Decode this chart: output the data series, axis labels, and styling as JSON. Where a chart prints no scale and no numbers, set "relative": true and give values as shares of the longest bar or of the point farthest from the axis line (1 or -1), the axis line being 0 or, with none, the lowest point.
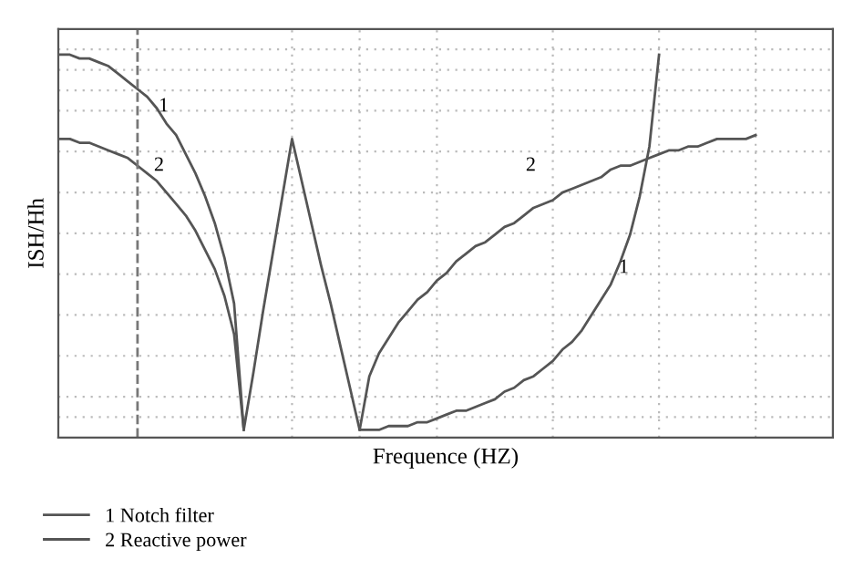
{
  "chart_data": {
    "type": "line",
    "relative": true,
    "xlabel": "Frequence (HZ)",
    "ylabel": "ISH/Hh",
    "categories": [
      null,
      null,
      null,
      null,
      null,
      null,
      null,
      null,
      null,
      null,
      null,
      null,
      null,
      null,
      null,
      null,
      null,
      null,
      null,
      null,
      null,
      null,
      null,
      null,
      null,
      null,
      null,
      null,
      null,
      null,
      null,
      null,
      null,
      null,
      null,
      null,
      null,
      null,
      null,
      null,
      null,
      null,
      null,
      null,
      null,
      null,
      null,
      null,
      null,
      null,
      null,
      null,
      null,
      null,
      null,
      null,
      null,
      null,
      null,
      null,
      null,
      null,
      null,
      null,
      null,
      null,
      null,
      null,
      null,
      null,
      null,
      null,
      null,
      null,
      null,
      null,
      null,
      null,
      null,
      null,
      null
    ],
    "series": [
      {
        "name": "1 Notch filter",
        "color": "#555555",
        "values": [
          1.0,
          1.0,
          0.99,
          0.99,
          0.98,
          0.97,
          0.95,
          0.93,
          0.91,
          0.89,
          0.86,
          0.82,
          0.79,
          0.74,
          0.69,
          0.63,
          0.56,
          0.47,
          0.35,
          0.02,
          0.17,
          0.33,
          0.48,
          0.63,
          0.78,
          0.67,
          0.56,
          0.45,
          0.35,
          0.24,
          0.13,
          0.02,
          0.02,
          0.02,
          0.03,
          0.03,
          0.03,
          0.04,
          0.04,
          0.05,
          0.06,
          0.07,
          0.07,
          0.08,
          0.09,
          0.1,
          0.12,
          0.13,
          0.15,
          0.16,
          0.18,
          0.2,
          0.23,
          0.25,
          0.28,
          0.32,
          0.36,
          0.4,
          0.46,
          0.53,
          0.63,
          0.76,
          1.0,
          null,
          null,
          null,
          null,
          null,
          null,
          null,
          null,
          null,
          null,
          null,
          null,
          null,
          null,
          null,
          null,
          null,
          null
        ]
      },
      {
        "name": "2 Reactive power",
        "color": "#555555",
        "values": [
          0.78,
          0.78,
          0.77,
          0.77,
          0.76,
          0.75,
          0.74,
          0.73,
          0.71,
          0.69,
          0.67,
          0.64,
          0.61,
          0.58,
          0.54,
          0.49,
          0.44,
          0.37,
          0.27,
          0.02,
          null,
          null,
          null,
          null,
          null,
          null,
          null,
          null,
          null,
          null,
          null,
          0.02,
          0.16,
          0.22,
          0.26,
          0.3,
          0.33,
          0.36,
          0.38,
          0.41,
          0.43,
          0.46,
          0.48,
          0.5,
          0.51,
          0.53,
          0.55,
          0.56,
          0.58,
          0.6,
          0.61,
          0.62,
          0.64,
          0.65,
          0.66,
          0.67,
          0.68,
          0.7,
          0.71,
          0.71,
          0.72,
          0.73,
          0.74,
          0.75,
          0.75,
          0.76,
          0.76,
          0.77,
          0.78,
          0.78,
          0.78,
          0.78,
          0.79,
          null,
          null,
          null,
          null,
          null,
          null,
          null,
          null
        ]
      }
    ],
    "annotations": [
      "1",
      "2",
      "2",
      "1"
    ],
    "grid": true,
    "legend": "bottom left",
    "line_style": "solid",
    "marker": "none"
  }
}
